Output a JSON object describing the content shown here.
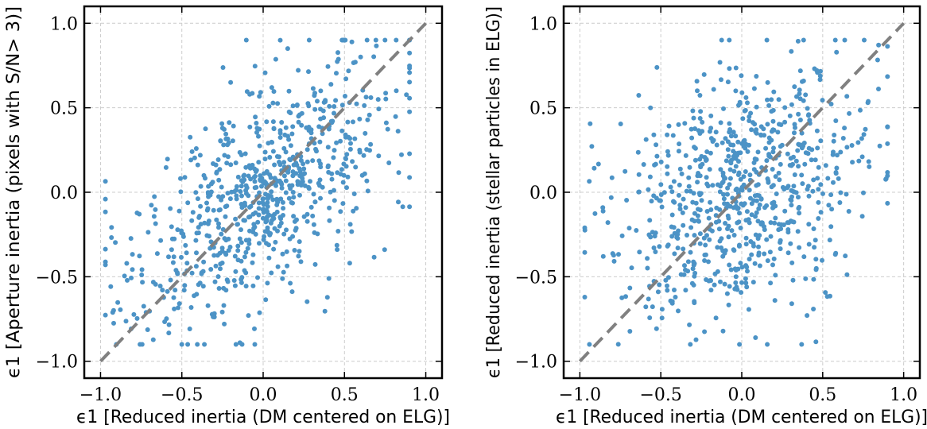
{
  "chart_data": [
    {
      "type": "scatter",
      "xlabel": "ϵ1 [Reduced inertia (DM centered on ELG)]",
      "ylabel": "ϵ1 [Aperture inertia (pixels with S/N> 3)]",
      "xlim": [
        -1.1,
        1.1
      ],
      "ylim": [
        -1.1,
        1.1
      ],
      "xticks": [
        -1.0,
        -0.5,
        0.0,
        0.5,
        1.0
      ],
      "yticks": [
        -1.0,
        -0.5,
        0.0,
        0.5,
        1.0
      ],
      "tick_labels": [
        "−1.0",
        "−0.5",
        "0.0",
        "0.5",
        "1.0"
      ],
      "grid": true,
      "reference_line": {
        "style": "dashed",
        "color": "#808080",
        "from": [
          -1.0,
          -1.0
        ],
        "to": [
          1.0,
          1.0
        ]
      },
      "marker_color": "#4c93c6",
      "n_points": 750,
      "correlation": 0.62,
      "seed": 17
    },
    {
      "type": "scatter",
      "xlabel": "ϵ1 [Reduced inertia (DM centered on ELG)]",
      "ylabel": "ϵ1 [Reduced inertia (stellar particles in ELG)]",
      "xlim": [
        -1.1,
        1.1
      ],
      "ylim": [
        -1.1,
        1.1
      ],
      "xticks": [
        -1.0,
        -0.5,
        0.0,
        0.5,
        1.0
      ],
      "yticks": [
        -1.0,
        -0.5,
        0.0,
        0.5,
        1.0
      ],
      "tick_labels": [
        "−1.0",
        "−0.5",
        "0.0",
        "0.5",
        "1.0"
      ],
      "grid": true,
      "reference_line": {
        "style": "dashed",
        "color": "#808080",
        "from": [
          -1.0,
          -1.0
        ],
        "to": [
          1.0,
          1.0
        ]
      },
      "marker_color": "#4c93c6",
      "n_points": 750,
      "correlation": 0.3,
      "seed": 42
    }
  ]
}
